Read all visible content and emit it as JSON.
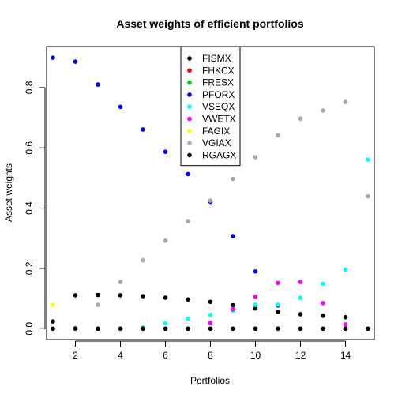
{
  "chart_data": {
    "type": "scatter",
    "title": "Asset weights of efficient portfolios",
    "xlabel": "Portfolios",
    "ylabel": "Asset weights",
    "xlim": [
      0.72,
      15.28
    ],
    "ylim": [
      -0.036,
      0.936
    ],
    "xticks": [
      2,
      4,
      6,
      8,
      10,
      12,
      14
    ],
    "yticks": [
      0.0,
      0.2,
      0.4,
      0.6,
      0.8
    ],
    "ytick_labels": [
      "0.0",
      "0.2",
      "0.4",
      "0.6",
      "0.8"
    ],
    "grid": false,
    "legend_position": "top-center",
    "x": [
      1,
      2,
      3,
      4,
      5,
      6,
      7,
      8,
      9,
      10,
      11,
      12,
      13,
      14,
      15
    ],
    "series": [
      {
        "name": "FISMX",
        "color": "#000000",
        "values": [
          0.024,
          0.111,
          0.112,
          0.111,
          0.108,
          0.103,
          0.097,
          0.089,
          0.078,
          0.067,
          0.056,
          0.048,
          0.043,
          0.038,
          0.0
        ]
      },
      {
        "name": "FHKCX",
        "color": "#FF0000",
        "values": [
          0,
          0,
          0,
          0,
          0,
          0,
          0,
          0,
          0,
          0,
          0,
          0,
          0,
          0,
          0
        ]
      },
      {
        "name": "FRESX",
        "color": "#00CD00",
        "values": [
          0,
          0,
          0,
          0,
          0,
          0,
          0,
          0,
          0,
          0,
          0,
          0,
          0,
          0,
          0
        ]
      },
      {
        "name": "PFORX",
        "color": "#0000FF",
        "values": [
          0.899,
          0.886,
          0.81,
          0.736,
          0.661,
          0.587,
          0.513,
          0.421,
          0.307,
          0.19,
          0.077,
          0.0,
          0.0,
          0.0,
          0.0
        ]
      },
      {
        "name": "VSEQX",
        "color": "#00FFFF",
        "values": [
          0.0,
          0.0,
          0.0,
          0.0,
          0.004,
          0.018,
          0.033,
          0.046,
          0.06,
          0.079,
          0.08,
          0.102,
          0.149,
          0.196,
          0.561
        ]
      },
      {
        "name": "VWETX",
        "color": "#FF00FF",
        "values": [
          0.0,
          0.0,
          0.0,
          0.0,
          0.0,
          0.0,
          0.0,
          0.019,
          0.064,
          0.106,
          0.152,
          0.155,
          0.085,
          0.014,
          0.0
        ]
      },
      {
        "name": "FAGIX",
        "color": "#FFFF00",
        "values": [
          0.079,
          0.0,
          0.0,
          0.0,
          0.0,
          0.0,
          0.0,
          0.0,
          0.0,
          0.0,
          0.0,
          0.0,
          0.0,
          0.0,
          0.0
        ]
      },
      {
        "name": "VGIAX",
        "color": "#A9A9A9",
        "values": [
          0.0,
          0.003,
          0.079,
          0.155,
          0.227,
          0.292,
          0.357,
          0.425,
          0.497,
          0.569,
          0.641,
          0.697,
          0.724,
          0.752,
          0.439
        ]
      },
      {
        "name": "RGAGX",
        "color": "#000000",
        "values": [
          0,
          0,
          0,
          0,
          0,
          0,
          0,
          0,
          0,
          0,
          0,
          0,
          0,
          0,
          0
        ]
      }
    ],
    "draw_order": [
      "FISMX",
      "FHKCX",
      "FRESX",
      "PFORX",
      "VSEQX",
      "VWETX",
      "VGIAX",
      "FAGIX",
      "RGAGX"
    ]
  }
}
